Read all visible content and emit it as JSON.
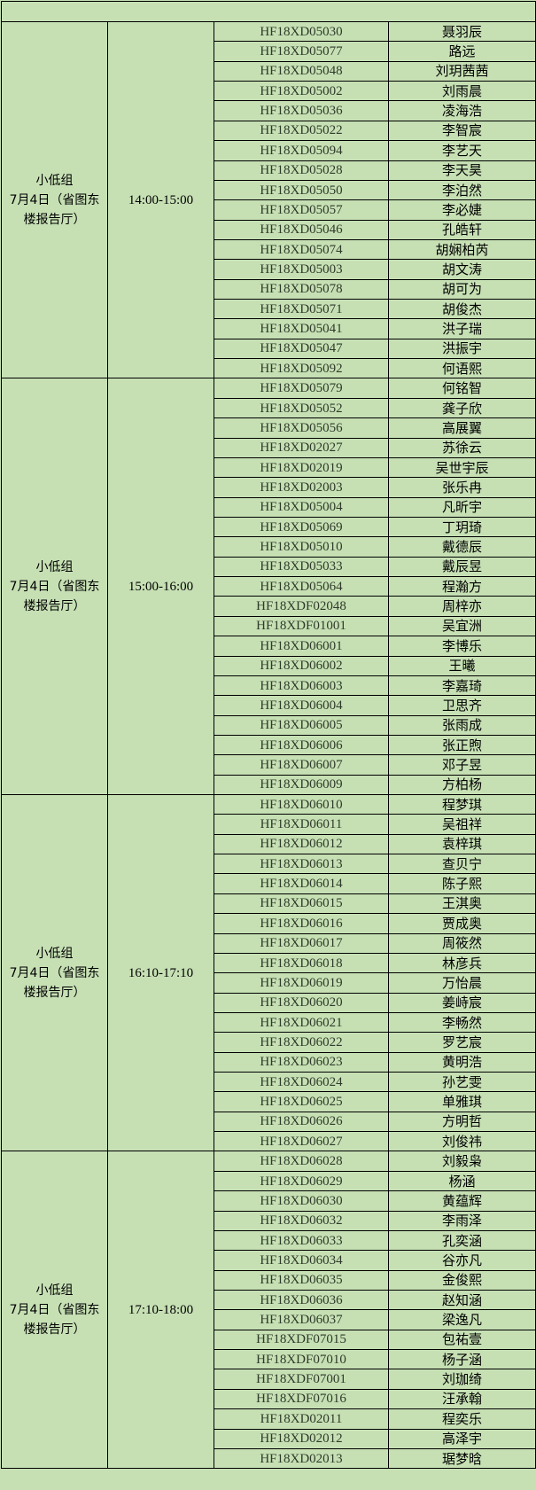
{
  "colors": {
    "background": "#c6e0b4",
    "border": "#000000"
  },
  "sessions": [
    {
      "group_lines": [
        "小低组",
        "7月4日（省图东",
        "楼报告厅）"
      ],
      "time": "14:00-15:00",
      "students": [
        [
          "HF18XD05030",
          "聂羽辰"
        ],
        [
          "HF18XD05077",
          "路远"
        ],
        [
          "HF18XD05048",
          "刘玥茜茜"
        ],
        [
          "HF18XD05002",
          "刘雨晨"
        ],
        [
          "HF18XD05036",
          "凌海浩"
        ],
        [
          "HF18XD05022",
          "李智宸"
        ],
        [
          "HF18XD05094",
          "李艺天"
        ],
        [
          "HF18XD05028",
          "李天昊"
        ],
        [
          "HF18XD05050",
          "李泊然"
        ],
        [
          "HF18XD05057",
          "李必婕"
        ],
        [
          "HF18XD05046",
          "孔皓轩"
        ],
        [
          "HF18XD05074",
          "胡娴柏芮"
        ],
        [
          "HF18XD05003",
          "胡文涛"
        ],
        [
          "HF18XD05078",
          "胡可为"
        ],
        [
          "HF18XD05071",
          "胡俊杰"
        ],
        [
          "HF18XD05041",
          "洪子瑞"
        ],
        [
          "HF18XD05047",
          "洪振宇"
        ],
        [
          "HF18XD05092",
          "何语熙"
        ]
      ]
    },
    {
      "group_lines": [
        "小低组",
        "7月4日（省图东",
        "楼报告厅）"
      ],
      "time": "15:00-16:00",
      "students": [
        [
          "HF18XD05079",
          "何铭智"
        ],
        [
          "HF18XD05052",
          "龚子欣"
        ],
        [
          "HF18XD05056",
          "高展翼"
        ],
        [
          "HF18XD02027",
          "苏徐云"
        ],
        [
          "HF18XD02019",
          "吴世宇辰"
        ],
        [
          "HF18XD02003",
          "张乐冉"
        ],
        [
          "HF18XD05004",
          "凡昕宇"
        ],
        [
          "HF18XD05069",
          "丁玥琦"
        ],
        [
          "HF18XD05010",
          "戴德辰"
        ],
        [
          "HF18XD05033",
          "戴辰昱"
        ],
        [
          "HF18XD05064",
          "程瀚方"
        ],
        [
          "HF18XDF02048",
          "周梓亦"
        ],
        [
          "HF18XDF01001",
          "吴宜洲"
        ],
        [
          "HF18XD06001",
          "李博乐"
        ],
        [
          "HF18XD06002",
          "王曦"
        ],
        [
          "HF18XD06003",
          "李嘉琦"
        ],
        [
          "HF18XD06004",
          "卫思齐"
        ],
        [
          "HF18XD06005",
          "张雨成"
        ],
        [
          "HF18XD06006",
          "张正煦"
        ],
        [
          "HF18XD06007",
          "邓子昱"
        ],
        [
          "HF18XD06009",
          "方柏杨"
        ]
      ]
    },
    {
      "group_lines": [
        "小低组",
        "7月4日（省图东",
        "楼报告厅）"
      ],
      "time": "16:10-17:10",
      "students": [
        [
          "HF18XD06010",
          "程梦琪"
        ],
        [
          "HF18XD06011",
          "吴祖祥"
        ],
        [
          "HF18XD06012",
          "袁梓琪"
        ],
        [
          "HF18XD06013",
          "查贝宁"
        ],
        [
          "HF18XD06014",
          "陈子熙"
        ],
        [
          "HF18XD06015",
          "王淇奥"
        ],
        [
          "HF18XD06016",
          "贾成奥"
        ],
        [
          "HF18XD06017",
          "周筱然"
        ],
        [
          "HF18XD06018",
          "林彦兵"
        ],
        [
          "HF18XD06019",
          "万怡晨"
        ],
        [
          "HF18XD06020",
          "姜峙宸"
        ],
        [
          "HF18XD06021",
          "李畅然"
        ],
        [
          "HF18XD06022",
          "罗艺宸"
        ],
        [
          "HF18XD06023",
          "黄明浩"
        ],
        [
          "HF18XD06024",
          "孙艺雯"
        ],
        [
          "HF18XD06025",
          "单雅琪"
        ],
        [
          "HF18XD06026",
          "方明哲"
        ],
        [
          "HF18XD06027",
          "刘俊祎"
        ]
      ]
    },
    {
      "group_lines": [
        "小低组",
        "7月4日（省图东",
        "楼报告厅）"
      ],
      "time": "17:10-18:00",
      "students": [
        [
          "HF18XD06028",
          "刘毅枭"
        ],
        [
          "HF18XD06029",
          "杨涵"
        ],
        [
          "HF18XD06030",
          "黄蕴辉"
        ],
        [
          "HF18XD06032",
          "李雨泽"
        ],
        [
          "HF18XD06033",
          "孔奕涵"
        ],
        [
          "HF18XD06034",
          "谷亦凡"
        ],
        [
          "HF18XD06035",
          "金俊熙"
        ],
        [
          "HF18XD06036",
          "赵知涵"
        ],
        [
          "HF18XD06037",
          "梁逸凡"
        ],
        [
          "HF18XDF07015",
          "包祐壹"
        ],
        [
          "HF18XDF07010",
          "杨子涵"
        ],
        [
          "HF18XDF07001",
          "刘珈绮"
        ],
        [
          "HF18XDF07016",
          "汪承翰"
        ],
        [
          "HF18XD02011",
          "程奕乐"
        ],
        [
          "HF18XD02012",
          "高泽宇"
        ],
        [
          "HF18XD02013",
          "琚梦晗"
        ]
      ]
    }
  ]
}
